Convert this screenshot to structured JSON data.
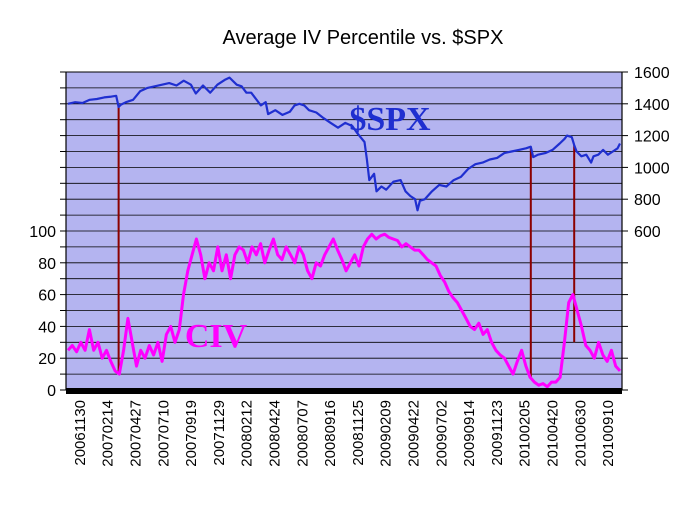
{
  "chart_data": {
    "type": "line",
    "title": "Average IV Percentile vs. $SPX",
    "plot_background": "#b4b4f0",
    "grid": true,
    "left_axis": {
      "range": [
        0,
        200
      ],
      "ticks": [
        0,
        20,
        40,
        60,
        80,
        100
      ],
      "tick_labels": [
        "0",
        "20",
        "40",
        "60",
        "80",
        "100"
      ]
    },
    "right_axis": {
      "range": [
        -400,
        1600
      ],
      "ticks": [
        600,
        800,
        1000,
        1200,
        1400,
        1600
      ],
      "tick_labels": [
        "600",
        "800",
        "1000",
        "1200",
        "1400",
        "1600"
      ]
    },
    "x_tick_labels": [
      "20061130",
      "20070214",
      "20070427",
      "20070710",
      "20070919",
      "20071129",
      "20080212",
      "20080424",
      "20080707",
      "20080916",
      "20081125",
      "20090209",
      "20090422",
      "20090702",
      "20090914",
      "20091123",
      "20100205",
      "20100420",
      "20100630",
      "20100910"
    ],
    "series": [
      {
        "name": "$SPX",
        "axis": "right",
        "color": "#1f2fd0",
        "values": [
          [
            0,
            1400
          ],
          [
            3,
            1410
          ],
          [
            6,
            1405
          ],
          [
            9,
            1425
          ],
          [
            12,
            1430
          ],
          [
            15,
            1440
          ],
          [
            18,
            1445
          ],
          [
            20,
            1450
          ],
          [
            21,
            1380
          ],
          [
            22,
            1395
          ],
          [
            24,
            1410
          ],
          [
            27,
            1425
          ],
          [
            30,
            1480
          ],
          [
            33,
            1500
          ],
          [
            36,
            1510
          ],
          [
            39,
            1520
          ],
          [
            42,
            1530
          ],
          [
            45,
            1515
          ],
          [
            48,
            1545
          ],
          [
            51,
            1520
          ],
          [
            53,
            1465
          ],
          [
            56,
            1515
          ],
          [
            59,
            1470
          ],
          [
            62,
            1520
          ],
          [
            65,
            1550
          ],
          [
            67,
            1565
          ],
          [
            70,
            1520
          ],
          [
            72,
            1510
          ],
          [
            74,
            1470
          ],
          [
            76,
            1470
          ],
          [
            78,
            1430
          ],
          [
            80,
            1390
          ],
          [
            82,
            1410
          ],
          [
            83,
            1335
          ],
          [
            86,
            1360
          ],
          [
            89,
            1330
          ],
          [
            92,
            1350
          ],
          [
            94,
            1390
          ],
          [
            96,
            1400
          ],
          [
            98,
            1390
          ],
          [
            100,
            1360
          ],
          [
            103,
            1345
          ],
          [
            106,
            1310
          ],
          [
            109,
            1280
          ],
          [
            112,
            1250
          ],
          [
            115,
            1280
          ],
          [
            118,
            1260
          ],
          [
            120,
            1215
          ],
          [
            123,
            1160
          ],
          [
            124,
            1050
          ],
          [
            125,
            920
          ],
          [
            127,
            960
          ],
          [
            128,
            850
          ],
          [
            130,
            880
          ],
          [
            132,
            860
          ],
          [
            135,
            910
          ],
          [
            138,
            920
          ],
          [
            140,
            850
          ],
          [
            142,
            820
          ],
          [
            144,
            800
          ],
          [
            145,
            730
          ],
          [
            146,
            790
          ],
          [
            148,
            800
          ],
          [
            151,
            850
          ],
          [
            154,
            890
          ],
          [
            157,
            880
          ],
          [
            160,
            920
          ],
          [
            163,
            940
          ],
          [
            166,
            990
          ],
          [
            169,
            1020
          ],
          [
            172,
            1030
          ],
          [
            175,
            1050
          ],
          [
            178,
            1060
          ],
          [
            181,
            1090
          ],
          [
            184,
            1100
          ],
          [
            187,
            1110
          ],
          [
            190,
            1120
          ],
          [
            192,
            1130
          ],
          [
            193,
            1065
          ],
          [
            195,
            1080
          ],
          [
            198,
            1090
          ],
          [
            201,
            1110
          ],
          [
            204,
            1150
          ],
          [
            206,
            1180
          ],
          [
            207,
            1200
          ],
          [
            209,
            1190
          ],
          [
            210,
            1140
          ],
          [
            211,
            1100
          ],
          [
            213,
            1070
          ],
          [
            215,
            1080
          ],
          [
            217,
            1030
          ],
          [
            218,
            1070
          ],
          [
            220,
            1080
          ],
          [
            222,
            1110
          ],
          [
            224,
            1080
          ],
          [
            226,
            1100
          ],
          [
            228,
            1120
          ],
          [
            229,
            1150
          ]
        ]
      },
      {
        "name": "CIV",
        "axis": "left",
        "color": "#ff00ff",
        "values": [
          [
            0,
            25
          ],
          [
            1,
            28
          ],
          [
            2,
            24
          ],
          [
            3,
            30
          ],
          [
            4,
            25
          ],
          [
            5,
            38
          ],
          [
            6,
            25
          ],
          [
            7,
            30
          ],
          [
            8,
            20
          ],
          [
            9,
            25
          ],
          [
            10,
            18
          ],
          [
            11,
            12
          ],
          [
            12,
            10
          ],
          [
            13,
            25
          ],
          [
            14,
            45
          ],
          [
            15,
            30
          ],
          [
            16,
            15
          ],
          [
            17,
            25
          ],
          [
            18,
            20
          ],
          [
            19,
            28
          ],
          [
            20,
            22
          ],
          [
            21,
            30
          ],
          [
            22,
            18
          ],
          [
            23,
            35
          ],
          [
            24,
            40
          ],
          [
            25,
            30
          ],
          [
            26,
            38
          ],
          [
            27,
            60
          ],
          [
            28,
            75
          ],
          [
            29,
            85
          ],
          [
            30,
            95
          ],
          [
            31,
            85
          ],
          [
            32,
            70
          ],
          [
            33,
            80
          ],
          [
            34,
            75
          ],
          [
            35,
            90
          ],
          [
            36,
            75
          ],
          [
            37,
            85
          ],
          [
            38,
            70
          ],
          [
            39,
            85
          ],
          [
            40,
            90
          ],
          [
            41,
            88
          ],
          [
            42,
            80
          ],
          [
            43,
            90
          ],
          [
            44,
            85
          ],
          [
            45,
            92
          ],
          [
            46,
            80
          ],
          [
            47,
            88
          ],
          [
            48,
            95
          ],
          [
            49,
            85
          ],
          [
            50,
            82
          ],
          [
            51,
            90
          ],
          [
            52,
            85
          ],
          [
            53,
            80
          ],
          [
            54,
            90
          ],
          [
            55,
            85
          ],
          [
            56,
            75
          ],
          [
            57,
            70
          ],
          [
            58,
            80
          ],
          [
            59,
            78
          ],
          [
            60,
            85
          ],
          [
            61,
            90
          ],
          [
            62,
            95
          ],
          [
            63,
            88
          ],
          [
            64,
            82
          ],
          [
            65,
            75
          ],
          [
            66,
            80
          ],
          [
            67,
            85
          ],
          [
            68,
            78
          ],
          [
            69,
            90
          ],
          [
            70,
            95
          ],
          [
            71,
            98
          ],
          [
            72,
            95
          ],
          [
            73,
            97
          ],
          [
            74,
            98
          ],
          [
            75,
            96
          ],
          [
            76,
            95
          ],
          [
            77,
            94
          ],
          [
            78,
            90
          ],
          [
            79,
            92
          ],
          [
            80,
            90
          ],
          [
            81,
            88
          ],
          [
            82,
            88
          ],
          [
            83,
            85
          ],
          [
            84,
            82
          ],
          [
            85,
            80
          ],
          [
            86,
            78
          ],
          [
            87,
            72
          ],
          [
            88,
            68
          ],
          [
            89,
            62
          ],
          [
            90,
            58
          ],
          [
            91,
            55
          ],
          [
            92,
            50
          ],
          [
            93,
            45
          ],
          [
            94,
            40
          ],
          [
            95,
            38
          ],
          [
            96,
            42
          ],
          [
            97,
            35
          ],
          [
            98,
            38
          ],
          [
            99,
            30
          ],
          [
            100,
            25
          ],
          [
            101,
            22
          ],
          [
            102,
            20
          ],
          [
            103,
            15
          ],
          [
            104,
            10
          ],
          [
            105,
            18
          ],
          [
            106,
            25
          ],
          [
            107,
            15
          ],
          [
            108,
            8
          ],
          [
            109,
            5
          ],
          [
            110,
            3
          ],
          [
            111,
            4
          ],
          [
            112,
            2
          ],
          [
            113,
            5
          ],
          [
            114,
            5
          ],
          [
            115,
            8
          ],
          [
            116,
            30
          ],
          [
            117,
            55
          ],
          [
            118,
            60
          ],
          [
            119,
            50
          ],
          [
            120,
            40
          ],
          [
            121,
            28
          ],
          [
            122,
            25
          ],
          [
            123,
            20
          ],
          [
            124,
            30
          ],
          [
            125,
            22
          ],
          [
            126,
            18
          ],
          [
            127,
            25
          ],
          [
            128,
            15
          ],
          [
            129,
            12
          ]
        ]
      }
    ],
    "series_labels": [
      {
        "text": "$SPX",
        "color": "#1f2fd0"
      },
      {
        "text": "CIV",
        "color": "#ff00ff"
      }
    ],
    "reference_lines": [
      {
        "color": "#8b0000",
        "spx_index": 21,
        "civ_index": 12
      },
      {
        "color": "#8b0000",
        "spx_index": 192,
        "civ_index": 108
      },
      {
        "color": "#8b0000",
        "spx_index": 210,
        "civ_index": 116
      }
    ]
  }
}
